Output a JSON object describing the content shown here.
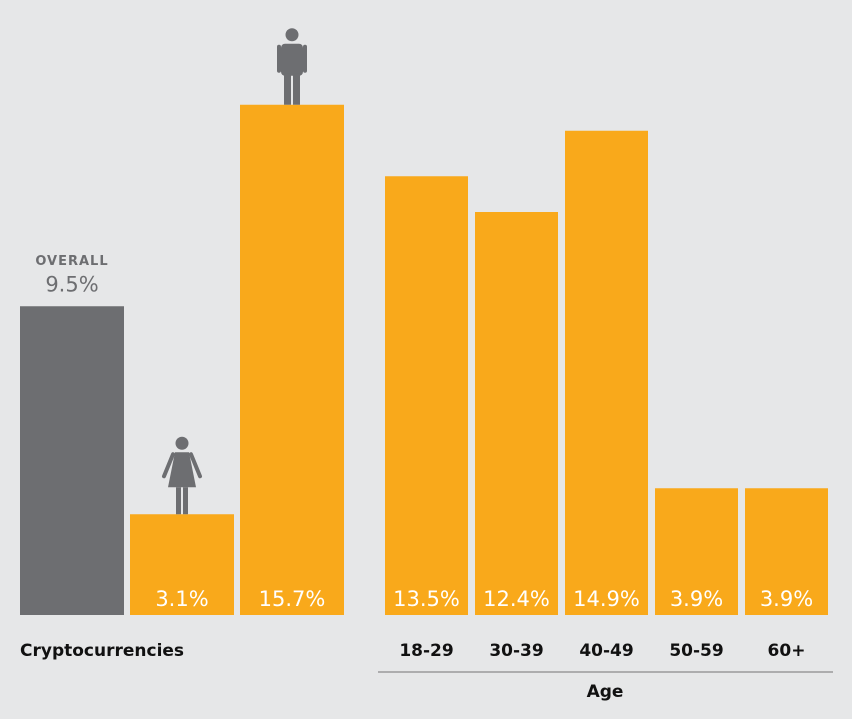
{
  "chart_data": {
    "type": "bar",
    "categories": [
      null,
      null,
      null,
      "18-29",
      "30-39",
      "40-49",
      "50-59",
      "60+"
    ],
    "values": [
      9.5,
      3.1,
      15.7,
      13.5,
      12.4,
      14.9,
      3.9,
      3.9
    ],
    "value_labels": [
      "9.5%",
      "3.1%",
      "15.7%",
      "13.5%",
      "12.4%",
      "14.9%",
      "3.9%",
      "3.9%"
    ],
    "colors": [
      "#6d6e71",
      "#f9a91b",
      "#f9a91b",
      "#f9a91b",
      "#f9a91b",
      "#f9a91b",
      "#f9a91b",
      "#f9a91b"
    ],
    "annotation": "OVERALL",
    "group_labels": [
      "Cryptocurrencies",
      "Age"
    ]
  }
}
